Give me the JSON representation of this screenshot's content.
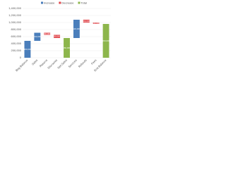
{
  "chart_data": {
    "type": "waterfall",
    "categories": [
      "Beg Balance",
      "Sales",
      "Returns",
      "Discounts",
      "Net Sales",
      "Services",
      "Refunds",
      "Fees",
      "End Balance"
    ],
    "values": [
      480000,
      230000,
      -60000,
      -90000,
      560000,
      520000,
      -80000,
      -40000,
      960000
    ],
    "value_labels": [
      "480,000",
      "230,000",
      "-60,000",
      "-90,000",
      "560,000",
      "520,000",
      "-80,000",
      "-40,000",
      "960,000"
    ],
    "measures": [
      "Increase",
      "Increase",
      "Decrease",
      "Decrease",
      "Total",
      "Increase",
      "Decrease",
      "Decrease",
      "Total"
    ],
    "series": [
      {
        "name": "Increase",
        "color": "#4a7ebb"
      },
      {
        "name": "Decrease",
        "color": "#e0454a"
      },
      {
        "name": "Total",
        "color": "#8db64c"
      }
    ],
    "ylim": [
      0,
      1400000
    ],
    "yticks": [
      0,
      {
        "value": 200000,
        "label": "200,000"
      },
      {
        "value": 400000,
        "label": "400,000"
      },
      {
        "value": 600000,
        "label": "600,000"
      },
      {
        "value": 800000,
        "label": "800,000"
      },
      {
        "value": 1000000,
        "label": "1,000,000"
      },
      {
        "value": 1200000,
        "label": "1,200,000"
      },
      {
        "value": 1400000,
        "label": "1,400,000"
      }
    ],
    "grid": true
  }
}
